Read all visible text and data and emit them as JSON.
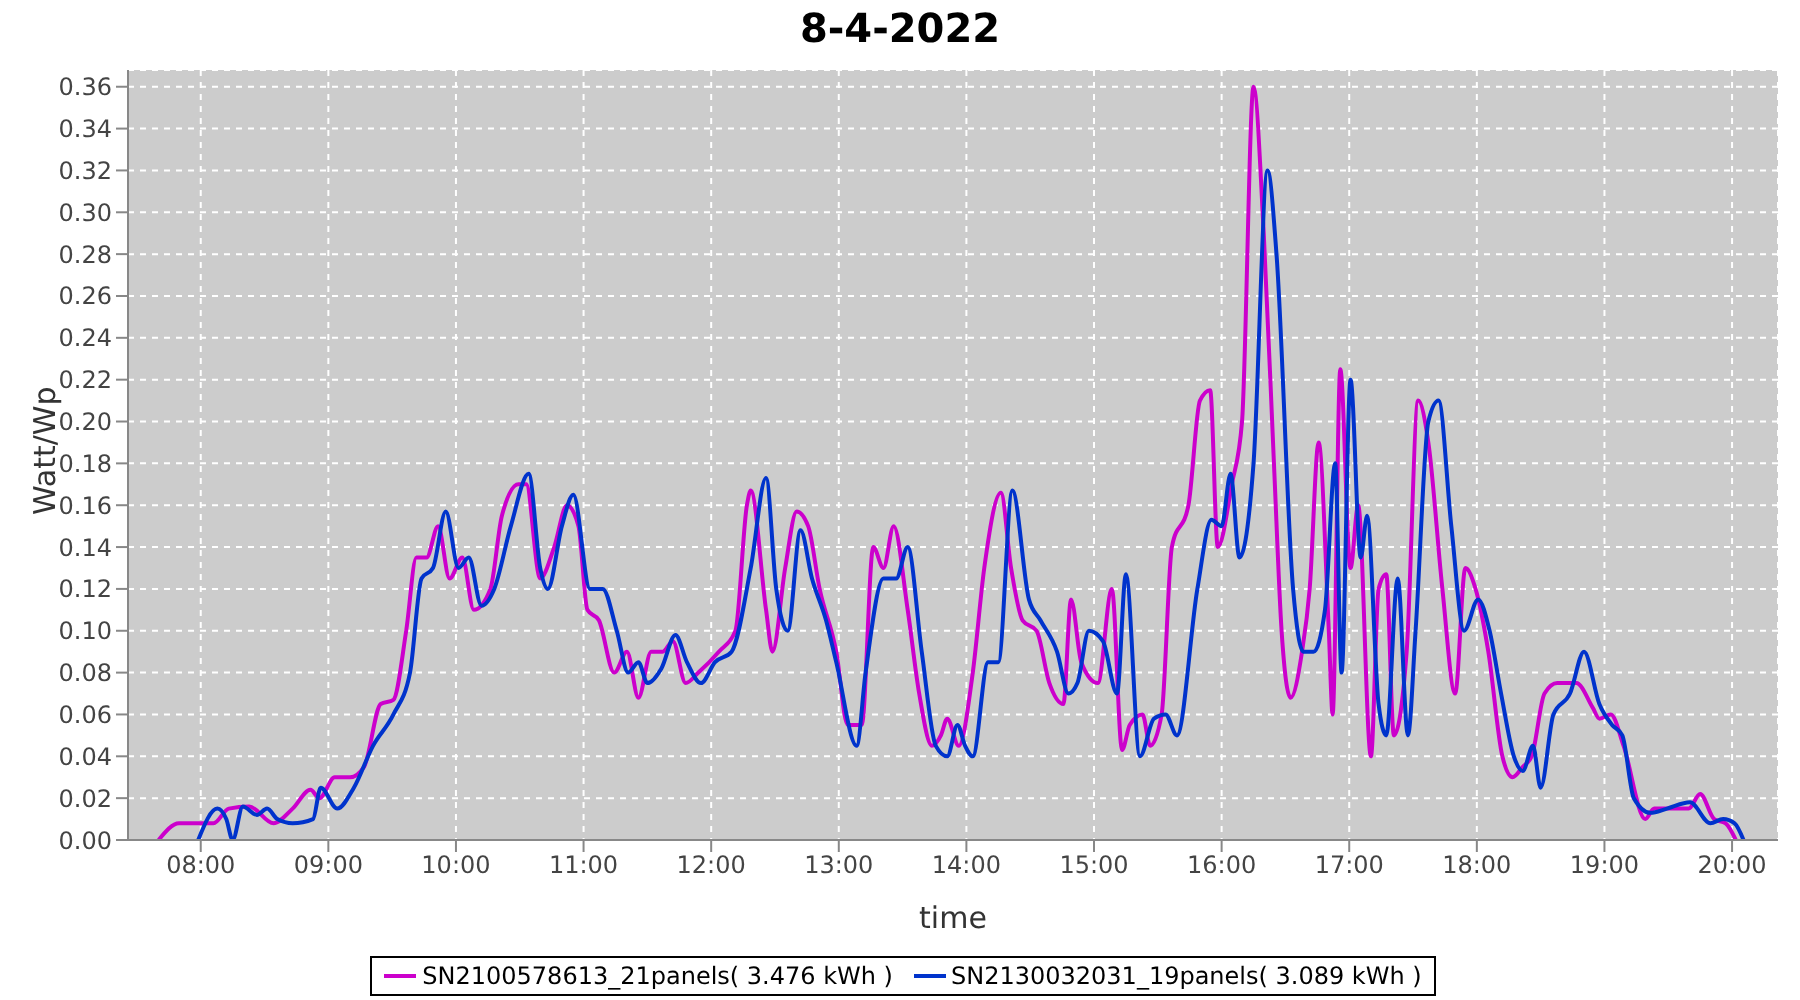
{
  "chart_data": {
    "type": "line",
    "title": "8-4-2022",
    "xlabel": "time",
    "ylabel": "Watt/Wp",
    "xlim": [
      7.43,
      20.36
    ],
    "xticks": [
      {
        "value": 8,
        "label": "08:00"
      },
      {
        "value": 9,
        "label": "09:00"
      },
      {
        "value": 10,
        "label": "10:00"
      },
      {
        "value": 11,
        "label": "11:00"
      },
      {
        "value": 12,
        "label": "12:00"
      },
      {
        "value": 13,
        "label": "13:00"
      },
      {
        "value": 14,
        "label": "14:00"
      },
      {
        "value": 15,
        "label": "15:00"
      },
      {
        "value": 16,
        "label": "16:00"
      },
      {
        "value": 17,
        "label": "17:00"
      },
      {
        "value": 18,
        "label": "18:00"
      },
      {
        "value": 19,
        "label": "19:00"
      },
      {
        "value": 20,
        "label": "20:00"
      }
    ],
    "ylim": [
      0,
      0.368
    ],
    "yticks": [
      {
        "value": 0,
        "label": "0.00"
      },
      {
        "value": 0.02,
        "label": "0.02"
      },
      {
        "value": 0.04,
        "label": "0.04"
      },
      {
        "value": 0.06,
        "label": "0.06"
      },
      {
        "value": 0.08,
        "label": "0.08"
      },
      {
        "value": 0.1,
        "label": "0.10"
      },
      {
        "value": 0.12,
        "label": "0.12"
      },
      {
        "value": 0.14,
        "label": "0.14"
      },
      {
        "value": 0.16,
        "label": "0.16"
      },
      {
        "value": 0.18,
        "label": "0.18"
      },
      {
        "value": 0.2,
        "label": "0.20"
      },
      {
        "value": 0.22,
        "label": "0.22"
      },
      {
        "value": 0.24,
        "label": "0.24"
      },
      {
        "value": 0.26,
        "label": "0.26"
      },
      {
        "value": 0.28,
        "label": "0.28"
      },
      {
        "value": 0.3,
        "label": "0.30"
      },
      {
        "value": 0.32,
        "label": "0.32"
      },
      {
        "value": 0.34,
        "label": "0.34"
      },
      {
        "value": 0.36,
        "label": "0.36"
      }
    ],
    "grid": true,
    "legend": "bottom",
    "marker": "none",
    "line_style": "solid",
    "series": [
      {
        "name": "SN2100578613_21panels( 3.476 kWh )",
        "color": "#cc00cc",
        "x": [
          7.67,
          7.83,
          8.1,
          8.22,
          8.38,
          8.57,
          8.72,
          8.86,
          8.93,
          9.05,
          9.17,
          9.28,
          9.41,
          9.51,
          9.61,
          9.69,
          9.77,
          9.86,
          9.95,
          10.05,
          10.14,
          10.27,
          10.36,
          10.49,
          10.55,
          10.66,
          10.77,
          10.87,
          10.96,
          11.03,
          11.12,
          11.24,
          11.34,
          11.43,
          11.53,
          11.62,
          11.7,
          11.8,
          11.9,
          12.06,
          12.19,
          12.28,
          12.31,
          12.43,
          12.48,
          12.58,
          12.67,
          12.76,
          12.85,
          12.98,
          13.07,
          13.18,
          13.27,
          13.35,
          13.43,
          13.54,
          13.63,
          13.73,
          13.8,
          13.85,
          13.94,
          14.05,
          14.14,
          14.27,
          14.35,
          14.44,
          14.55,
          14.65,
          14.76,
          14.82,
          14.9,
          15.03,
          15.14,
          15.22,
          15.28,
          15.38,
          15.44,
          15.53,
          15.61,
          15.74,
          15.83,
          15.91,
          15.97,
          16.08,
          16.16,
          16.25,
          16.33,
          16.41,
          16.47,
          16.54,
          16.63,
          16.69,
          16.76,
          16.84,
          16.87,
          16.93,
          17.01,
          17.07,
          17.17,
          17.23,
          17.29,
          17.35,
          17.45,
          17.54,
          17.62,
          17.73,
          17.83,
          17.91,
          17.99,
          18.09,
          18.2,
          18.28,
          18.36,
          18.43,
          18.53,
          18.63,
          18.78,
          18.91,
          18.96,
          19.05,
          19.15,
          19.32,
          19.39,
          19.47,
          19.66,
          19.75,
          19.86,
          19.95,
          20.03
        ],
        "values": [
          0,
          0.008,
          0.008,
          0.015,
          0.016,
          0.008,
          0.015,
          0.024,
          0.02,
          0.03,
          0.03,
          0.035,
          0.065,
          0.067,
          0.1,
          0.135,
          0.135,
          0.15,
          0.125,
          0.135,
          0.11,
          0.12,
          0.155,
          0.17,
          0.17,
          0.125,
          0.14,
          0.16,
          0.15,
          0.11,
          0.105,
          0.08,
          0.09,
          0.068,
          0.09,
          0.09,
          0.095,
          0.075,
          0.08,
          0.09,
          0.1,
          0.16,
          0.167,
          0.11,
          0.09,
          0.13,
          0.157,
          0.15,
          0.12,
          0.09,
          0.055,
          0.055,
          0.14,
          0.13,
          0.15,
          0.11,
          0.07,
          0.045,
          0.05,
          0.058,
          0.045,
          0.08,
          0.13,
          0.166,
          0.13,
          0.105,
          0.1,
          0.075,
          0.065,
          0.115,
          0.085,
          0.075,
          0.12,
          0.043,
          0.055,
          0.06,
          0.045,
          0.06,
          0.14,
          0.16,
          0.21,
          0.215,
          0.14,
          0.17,
          0.2,
          0.36,
          0.29,
          0.18,
          0.1,
          0.068,
          0.09,
          0.12,
          0.19,
          0.1,
          0.06,
          0.225,
          0.13,
          0.16,
          0.04,
          0.12,
          0.127,
          0.05,
          0.09,
          0.21,
          0.19,
          0.12,
          0.07,
          0.13,
          0.12,
          0.09,
          0.04,
          0.03,
          0.035,
          0.04,
          0.07,
          0.075,
          0.075,
          0.063,
          0.058,
          0.06,
          0.045,
          0.01,
          0.015,
          0.015,
          0.015,
          0.022,
          0.01,
          0.008,
          0
        ]
      },
      {
        "name": "SN2130032031_19panels( 3.089 kWh )",
        "color": "#0033cc",
        "x": [
          7.98,
          8.13,
          8.2,
          8.25,
          8.33,
          8.44,
          8.52,
          8.6,
          8.72,
          8.88,
          8.94,
          9.07,
          9.2,
          9.35,
          9.51,
          9.64,
          9.73,
          9.82,
          9.92,
          10.02,
          10.1,
          10.2,
          10.3,
          10.43,
          10.57,
          10.66,
          10.72,
          10.83,
          10.92,
          11.05,
          11.15,
          11.26,
          11.35,
          11.43,
          11.5,
          11.61,
          11.72,
          11.81,
          11.92,
          12.03,
          12.16,
          12.31,
          12.43,
          12.51,
          12.6,
          12.7,
          12.79,
          12.9,
          12.98,
          13.14,
          13.21,
          13.35,
          13.45,
          13.54,
          13.65,
          13.76,
          13.85,
          13.93,
          13.99,
          14.05,
          14.17,
          14.25,
          14.36,
          14.49,
          14.58,
          14.71,
          14.8,
          14.87,
          14.96,
          15.07,
          15.18,
          15.25,
          15.36,
          15.47,
          15.56,
          15.65,
          15.81,
          15.92,
          16.0,
          16.07,
          16.14,
          16.25,
          16.36,
          16.43,
          16.56,
          16.64,
          16.72,
          16.81,
          16.89,
          16.94,
          17.01,
          17.09,
          17.14,
          17.23,
          17.29,
          17.38,
          17.46,
          17.52,
          17.62,
          17.7,
          17.8,
          17.9,
          18.01,
          18.1,
          18.19,
          18.29,
          18.36,
          18.44,
          18.5,
          18.6,
          18.73,
          18.84,
          18.96,
          19.06,
          19.14,
          19.23,
          19.36,
          19.49,
          19.67,
          19.83,
          19.93,
          20.02,
          20.09
        ],
        "values": [
          0,
          0.015,
          0.01,
          0,
          0.016,
          0.012,
          0.015,
          0.01,
          0.008,
          0.01,
          0.025,
          0.015,
          0.025,
          0.045,
          0.06,
          0.08,
          0.125,
          0.13,
          0.157,
          0.13,
          0.135,
          0.112,
          0.12,
          0.15,
          0.175,
          0.13,
          0.12,
          0.15,
          0.165,
          0.12,
          0.12,
          0.1,
          0.08,
          0.085,
          0.075,
          0.082,
          0.098,
          0.085,
          0.075,
          0.085,
          0.09,
          0.13,
          0.173,
          0.12,
          0.1,
          0.148,
          0.125,
          0.105,
          0.085,
          0.045,
          0.08,
          0.125,
          0.125,
          0.14,
          0.09,
          0.045,
          0.04,
          0.055,
          0.045,
          0.04,
          0.085,
          0.085,
          0.167,
          0.115,
          0.105,
          0.09,
          0.07,
          0.075,
          0.1,
          0.095,
          0.07,
          0.127,
          0.04,
          0.058,
          0.06,
          0.05,
          0.12,
          0.153,
          0.15,
          0.175,
          0.135,
          0.18,
          0.32,
          0.28,
          0.12,
          0.09,
          0.09,
          0.11,
          0.18,
          0.08,
          0.22,
          0.135,
          0.155,
          0.065,
          0.05,
          0.125,
          0.05,
          0.1,
          0.2,
          0.21,
          0.15,
          0.1,
          0.115,
          0.1,
          0.07,
          0.04,
          0.033,
          0.045,
          0.025,
          0.06,
          0.07,
          0.09,
          0.065,
          0.055,
          0.05,
          0.02,
          0.013,
          0.015,
          0.018,
          0.008,
          0.01,
          0.008,
          0
        ]
      }
    ]
  }
}
